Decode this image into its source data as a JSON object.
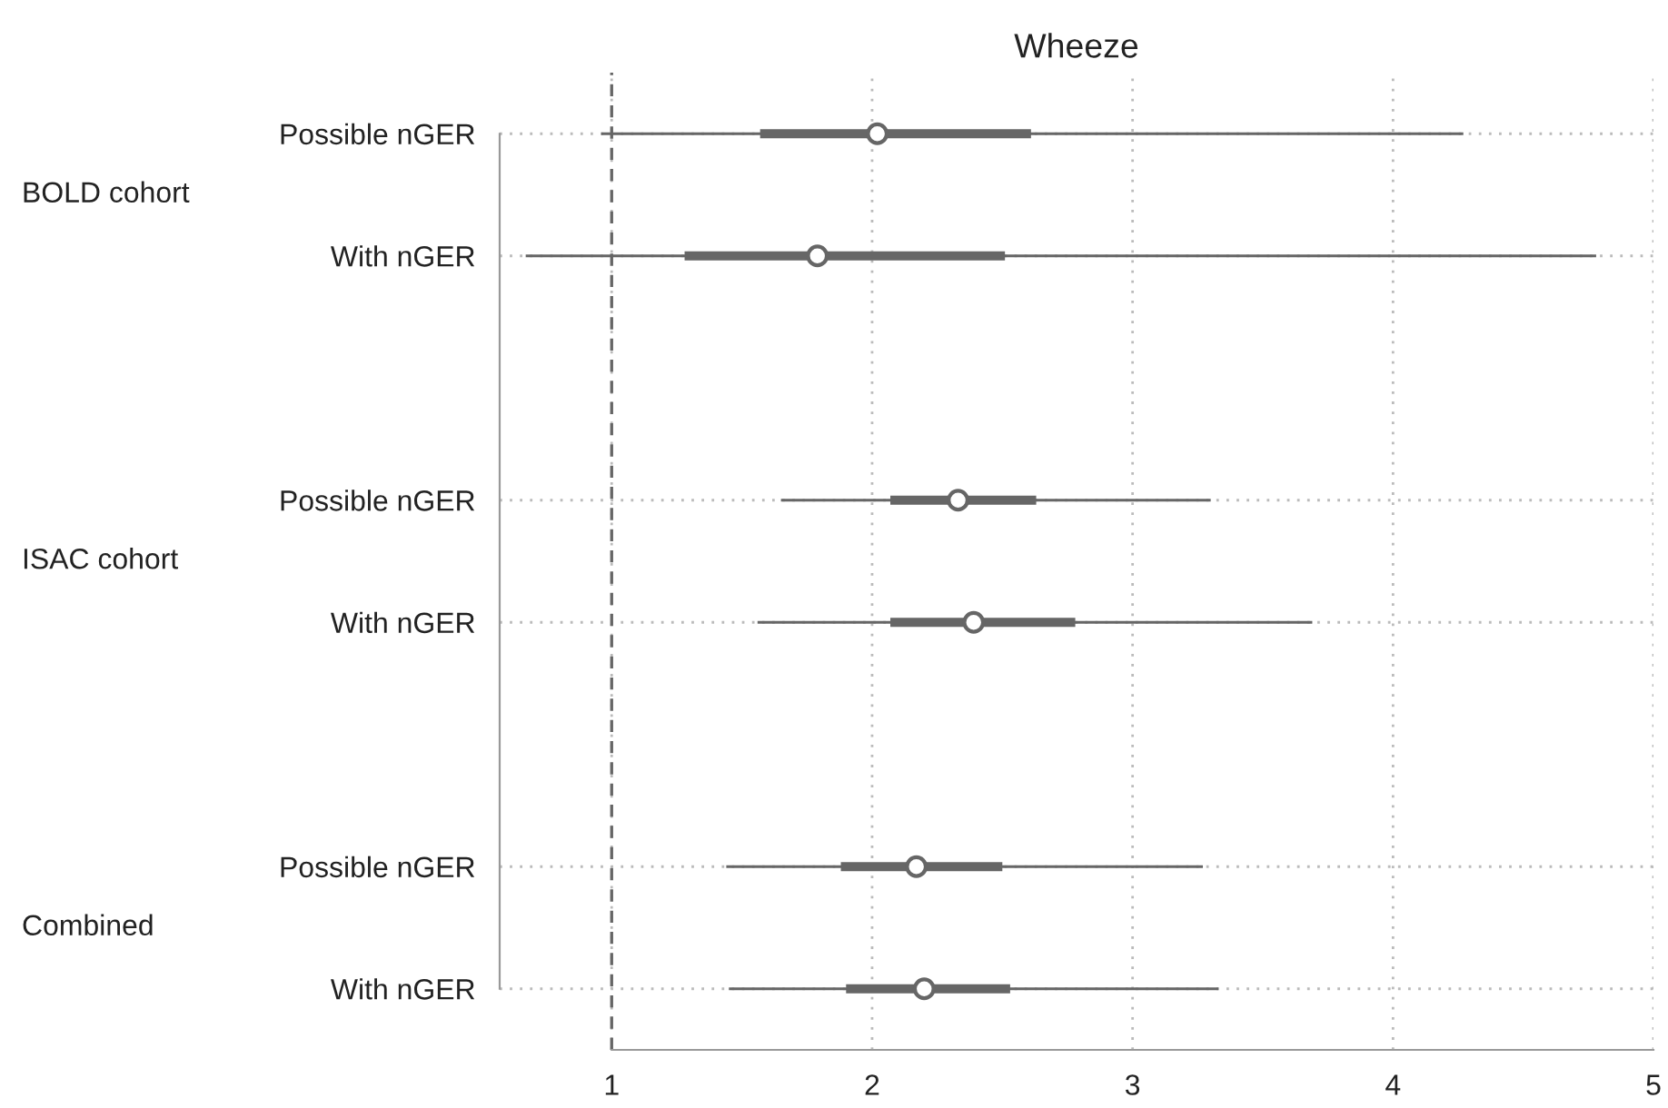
{
  "chart_data": {
    "type": "bar",
    "title": "Wheeze",
    "orientation": "horizontal",
    "categories": [
      "Possible nGER",
      "With nGER",
      null,
      "Possible nGER",
      "With nGER",
      null,
      "Possible nGER",
      "With nGER"
    ],
    "series": [
      {
        "color": "#666666",
        "base": [
          0.96,
          0.67,
          null,
          1.65,
          1.56,
          null,
          1.44,
          1.45
        ],
        "values": [
          3.31,
          4.11,
          null,
          1.65,
          2.13,
          null,
          1.83,
          1.88
        ]
      },
      {
        "color": "#666666",
        "base": [
          1.57,
          1.28,
          null,
          2.07,
          2.07,
          null,
          1.88,
          1.9
        ],
        "values": [
          1.04,
          1.23,
          null,
          0.56,
          0.71,
          null,
          0.62,
          0.63
        ]
      },
      {
        "type": "scatter",
        "color": "#666666",
        "marker": "circle",
        "values": [
          2.02,
          1.79,
          null,
          2.33,
          2.39,
          null,
          2.17,
          2.2
        ]
      }
    ],
    "xlim": [
      0.57,
      5
    ],
    "xticks": [
      1,
      2,
      3,
      4,
      5
    ],
    "grid": true,
    "ref_lines": [
      {
        "axis": "x",
        "value": 1,
        "color": "#666666",
        "line_style": "dashed"
      }
    ],
    "annotations": [
      "BOLD cohort",
      "ISAC cohort",
      "Combined"
    ]
  }
}
